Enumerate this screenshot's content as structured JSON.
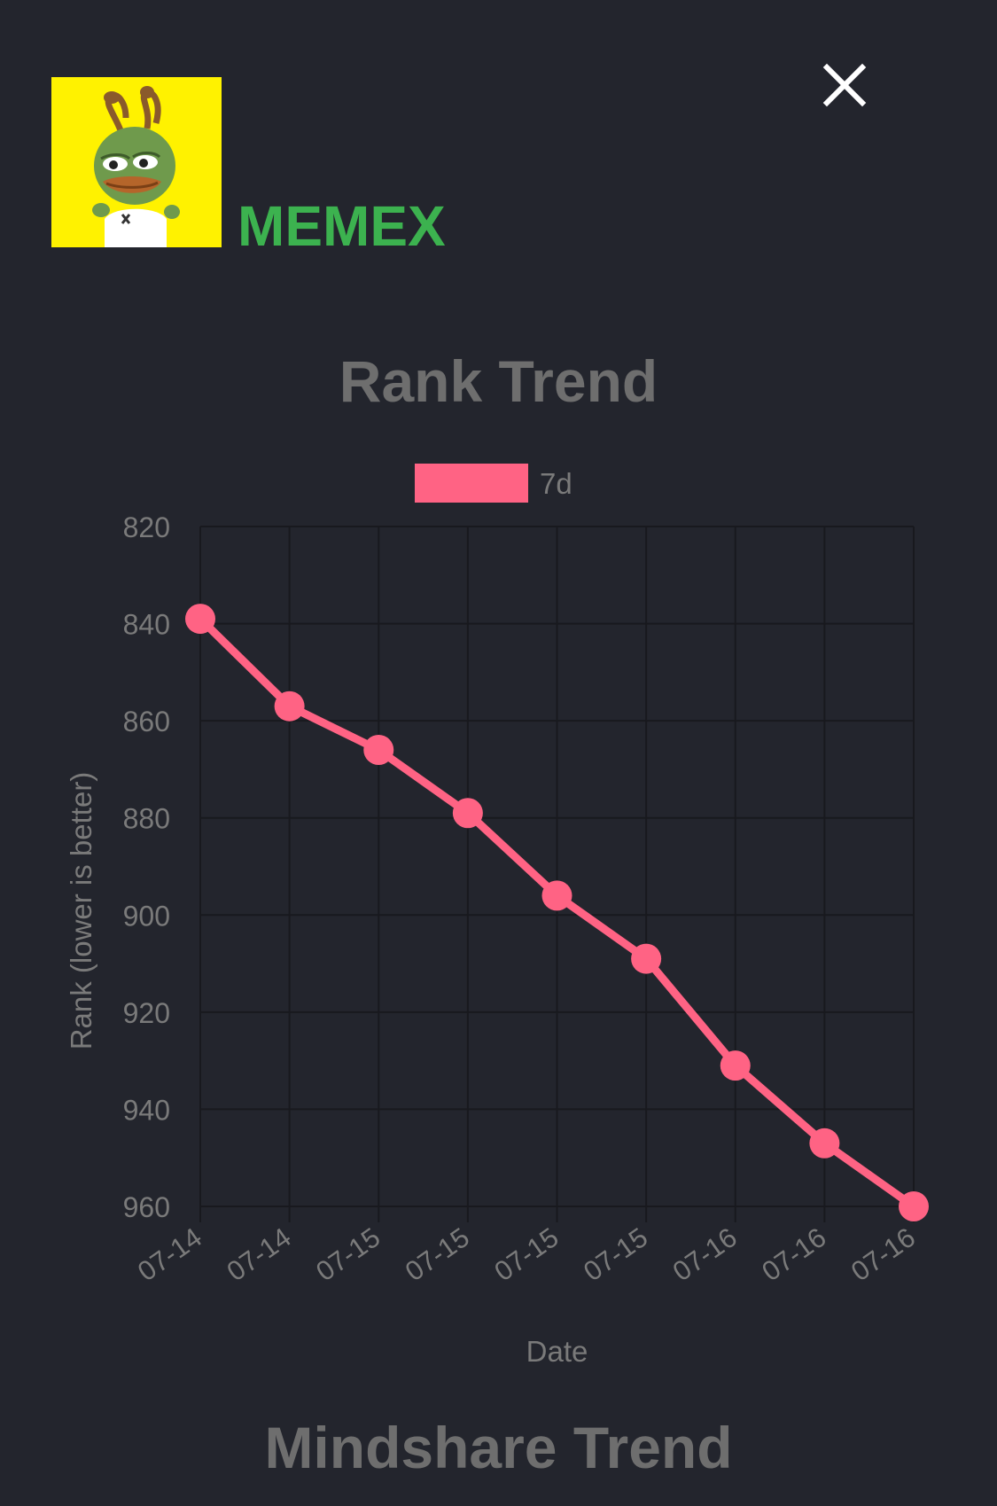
{
  "header": {
    "token_name": "MEMEX",
    "avatar_icon": "pepe-frog-icon",
    "close_icon": "close-icon"
  },
  "colors": {
    "background": "#23252d",
    "token_name": "#3cb24f",
    "series": "#ff6384",
    "title": "#6e6e6e",
    "tick": "#7a7a7a",
    "grid": "#1a1b20",
    "avatar_bg": "#fff200"
  },
  "sections": {
    "rank_title": "Rank Trend",
    "mindshare_title": "Mindshare Trend"
  },
  "chart_data": {
    "type": "line",
    "title": "Rank Trend",
    "xlabel": "Date",
    "ylabel": "Rank (lower is better)",
    "ylim": [
      820,
      960
    ],
    "y_reversed": true,
    "yticks": [
      820,
      840,
      860,
      880,
      900,
      920,
      940,
      960
    ],
    "grid": true,
    "legend_position": "top",
    "categories": [
      "07-14",
      "07-14",
      "07-15",
      "07-15",
      "07-15",
      "07-15",
      "07-16",
      "07-16",
      "07-16"
    ],
    "series": [
      {
        "name": "7d",
        "color": "#ff6384",
        "values": [
          839,
          857,
          866,
          879,
          896,
          909,
          931,
          947,
          960
        ]
      }
    ]
  }
}
